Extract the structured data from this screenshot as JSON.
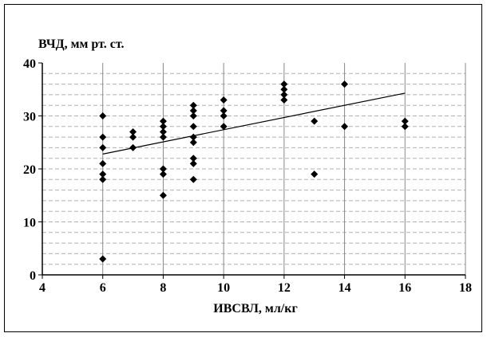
{
  "chart_data": {
    "type": "scatter",
    "title": "",
    "xlabel": "ИВСВЛ, мл/кг",
    "ylabel": "ВЧД, мм рт. ст.",
    "xlim": [
      4,
      18
    ],
    "ylim": [
      0,
      40
    ],
    "xticks": [
      4,
      6,
      8,
      10,
      12,
      14,
      16,
      18
    ],
    "yticks": [
      0,
      10,
      20,
      30,
      40
    ],
    "grid": {
      "vertical_major": true,
      "horizontal_minor_dashed": true,
      "minor_step": 2
    },
    "marker": "diamond",
    "colors": {
      "marker": "#000000",
      "grid_major": "#888888",
      "grid_minor": "#b0b0b0",
      "axis": "#000000"
    },
    "points": [
      {
        "x": 6,
        "y": 30
      },
      {
        "x": 6,
        "y": 26
      },
      {
        "x": 6,
        "y": 24
      },
      {
        "x": 6,
        "y": 21
      },
      {
        "x": 6,
        "y": 19
      },
      {
        "x": 6,
        "y": 18
      },
      {
        "x": 6,
        "y": 3
      },
      {
        "x": 7,
        "y": 27
      },
      {
        "x": 7,
        "y": 26
      },
      {
        "x": 7,
        "y": 24
      },
      {
        "x": 8,
        "y": 29
      },
      {
        "x": 8,
        "y": 28
      },
      {
        "x": 8,
        "y": 27
      },
      {
        "x": 8,
        "y": 26
      },
      {
        "x": 8,
        "y": 20
      },
      {
        "x": 8,
        "y": 19
      },
      {
        "x": 8,
        "y": 15
      },
      {
        "x": 9,
        "y": 32
      },
      {
        "x": 9,
        "y": 31
      },
      {
        "x": 9,
        "y": 30
      },
      {
        "x": 9,
        "y": 28
      },
      {
        "x": 9,
        "y": 26
      },
      {
        "x": 9,
        "y": 25
      },
      {
        "x": 9,
        "y": 22
      },
      {
        "x": 9,
        "y": 21
      },
      {
        "x": 9,
        "y": 18
      },
      {
        "x": 10,
        "y": 33
      },
      {
        "x": 10,
        "y": 31
      },
      {
        "x": 10,
        "y": 30
      },
      {
        "x": 10,
        "y": 28
      },
      {
        "x": 12,
        "y": 36
      },
      {
        "x": 12,
        "y": 35
      },
      {
        "x": 12,
        "y": 34
      },
      {
        "x": 12,
        "y": 33
      },
      {
        "x": 13,
        "y": 29
      },
      {
        "x": 13,
        "y": 19
      },
      {
        "x": 14,
        "y": 36
      },
      {
        "x": 14,
        "y": 28
      },
      {
        "x": 16,
        "y": 29
      },
      {
        "x": 16,
        "y": 28
      }
    ],
    "trendline": {
      "x": [
        6,
        16
      ],
      "y": [
        22.8,
        34.3
      ]
    }
  }
}
